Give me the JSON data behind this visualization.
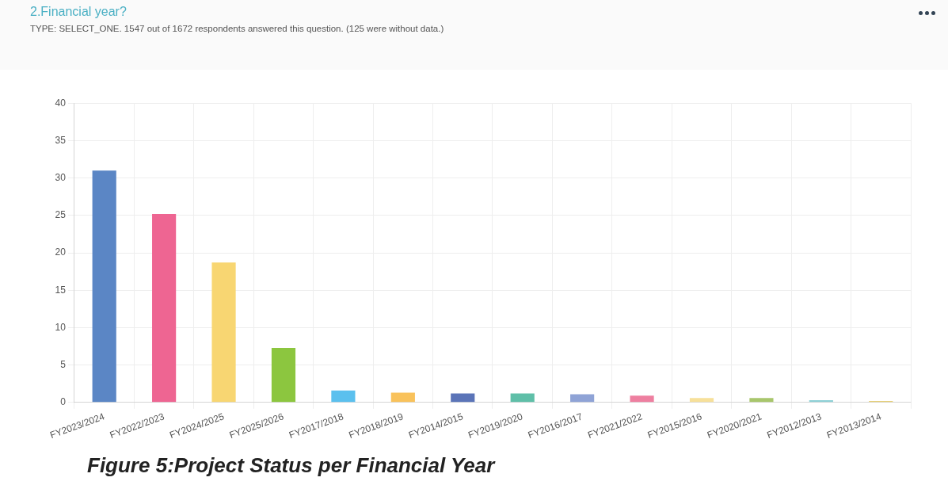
{
  "chart_data": {
    "type": "bar",
    "title": "2.Financial year?",
    "subtitle": "TYPE: SELECT_ONE. 1547 out of 1672 respondents answered this question. (125 were without data.)",
    "categories": [
      "FY2023/2024",
      "FY2022/2023",
      "FY2024/2025",
      "FY2025/2026",
      "FY2017/2018",
      "FY2018/2019",
      "FY2014/2015",
      "FY2019/2020",
      "FY2016/2017",
      "FY2021/2022",
      "FY2015/2016",
      "FY2020/2021",
      "FY2012/2013",
      "FY2013/2014"
    ],
    "values": [
      31,
      25.2,
      18.7,
      7.3,
      1.6,
      1.3,
      1.2,
      1.2,
      1.1,
      0.9,
      0.6,
      0.6,
      0.3,
      0.2
    ],
    "colors": [
      "#5b86c5",
      "#ee6592",
      "#f8d672",
      "#8cc63f",
      "#5bc0ee",
      "#f9c25b",
      "#5b74b8",
      "#5fbfa8",
      "#8fa3d6",
      "#ee7fa0",
      "#f7e09a",
      "#a8c66c",
      "#8ed0d6",
      "#e6cf78"
    ],
    "ylim": [
      0,
      40
    ],
    "yticks": [
      0,
      5,
      10,
      15,
      20,
      25,
      30,
      35,
      40
    ],
    "grid": true,
    "annotations": [
      "Figure 5:Project Status per Financial Year"
    ]
  }
}
